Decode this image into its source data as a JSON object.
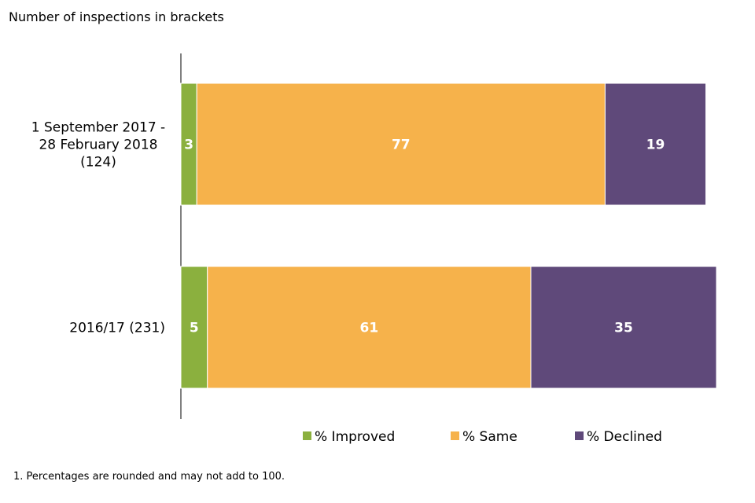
{
  "chart_data": {
    "type": "bar",
    "orientation": "horizontal",
    "stacked": true,
    "subtitle": "Number of inspections in brackets",
    "footnote": "1. Percentages are rounded  and may not add to 100.",
    "categories": [
      [
        "1 September 2017 -",
        "28 February 2018",
        "(124)"
      ],
      [
        "2016/17 (231)"
      ]
    ],
    "series": [
      {
        "name": "% Improved",
        "color": "#8bb03e",
        "values": [
          3,
          5
        ]
      },
      {
        "name": "% Same",
        "color": "#f6b24b",
        "values": [
          77,
          61
        ]
      },
      {
        "name": "% Declined",
        "color": "#5f497a",
        "values": [
          19,
          35
        ]
      }
    ],
    "xlim": [
      0,
      101
    ],
    "legend_position": "bottom"
  }
}
